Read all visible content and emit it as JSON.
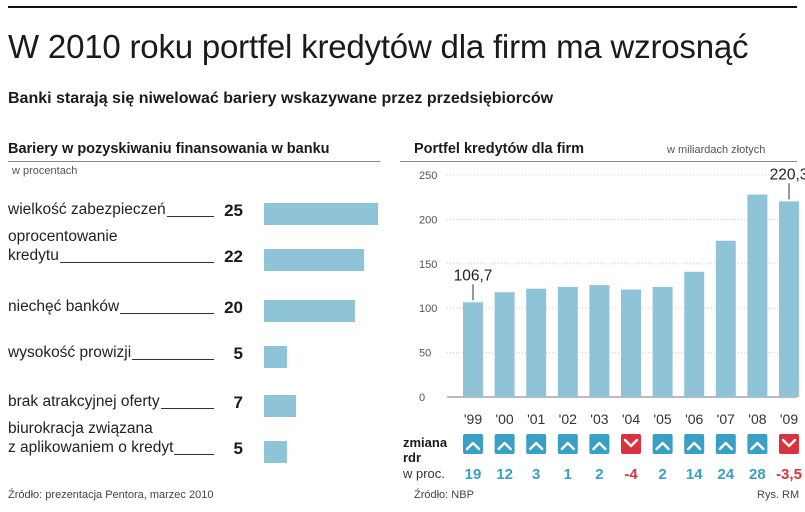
{
  "header": {
    "title": "W 2010 roku portfel kredytów dla firm ma wzrosnąć",
    "subtitle": "Banki starają się niwelować bariery wskazywane przez przedsiębiorców"
  },
  "left_panel": {
    "title": "Bariery w pozyskiwaniu finansowania w banku",
    "unit": "w procentach",
    "source": "Źródło: prezentacja Pentora, marzec 2010"
  },
  "right_panel": {
    "title": "Portfel kredytów dla firm",
    "unit": "w miliardach złotych",
    "change_label_line1": "zmiana",
    "change_label_line2": "rdr",
    "change_unit": "w proc.",
    "source": "Źródło: NBP",
    "credit": "Rys. RM"
  },
  "colors": {
    "bar": "#8fc4d8",
    "up": "#3a9fc4",
    "down": "#d9333f"
  },
  "chart_data": [
    {
      "type": "bar",
      "orientation": "horizontal",
      "title": "Bariery w pozyskiwaniu finansowania w banku",
      "unit": "w procentach",
      "categories": [
        "wielkość zabezpieczeń",
        "oprocentowanie kredytu",
        "niechęć banków",
        "wysokość prowizji",
        "brak atrakcyjnej oferty",
        "biurokracja związana z aplikowaniem o kredyt"
      ],
      "label_lines": [
        [
          "wielkość zabezpieczeń"
        ],
        [
          "oprocentowanie",
          "kredytu"
        ],
        [
          "niechęć banków"
        ],
        [
          "wysokość prowizji"
        ],
        [
          "brak atrakcyjnej oferty"
        ],
        [
          "biurokracja związana",
          "z aplikowaniem o kredyt"
        ]
      ],
      "values": [
        25,
        22,
        20,
        5,
        7,
        5
      ]
    },
    {
      "type": "bar",
      "title": "Portfel kredytów dla firm",
      "unit": "w miliardach złotych",
      "categories": [
        "'99",
        "'00",
        "'01",
        "'02",
        "'03",
        "'04",
        "'05",
        "'06",
        "'07",
        "'08",
        "'09"
      ],
      "values": [
        106.7,
        118,
        122,
        124,
        126,
        121,
        124,
        141,
        176,
        228,
        220.3
      ],
      "ylim": [
        0,
        250
      ],
      "yticks": [
        0,
        50,
        100,
        150,
        200,
        250
      ],
      "ytick_labels": [
        "0",
        "50",
        "100",
        "150",
        "200",
        "250"
      ],
      "grid": true,
      "annotations": [
        {
          "category": "'99",
          "text": "106,7"
        },
        {
          "category": "'09",
          "text": "220,3"
        }
      ],
      "yoy_change": {
        "values": [
          19,
          12,
          3,
          1,
          2,
          -4,
          2,
          14,
          24,
          28,
          -3.5
        ],
        "labels": [
          "19",
          "12",
          "3",
          "1",
          "2",
          "-4",
          "2",
          "14",
          "24",
          "28",
          "-3,5"
        ]
      }
    }
  ]
}
